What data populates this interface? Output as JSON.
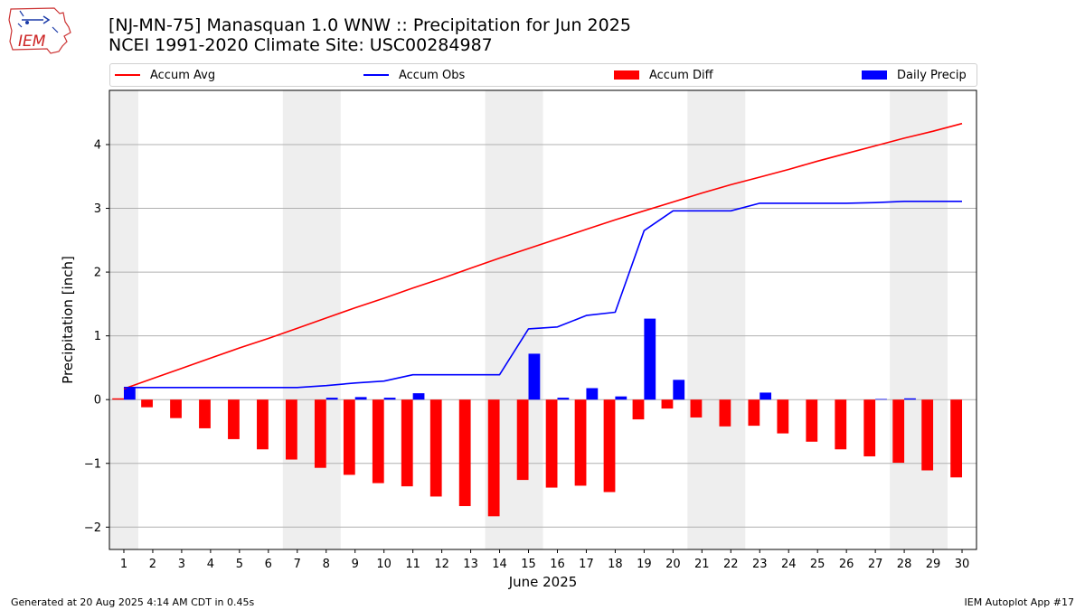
{
  "header": {
    "title_line1": "[NJ-MN-75] Manasquan 1.0 WNW :: Precipitation for Jun 2025",
    "title_line2": "NCEI 1991-2020 Climate Site: USC00284987",
    "logo_text": "IEM"
  },
  "legend": {
    "placement": "top",
    "items": [
      {
        "label": "Accum Avg",
        "kind": "line",
        "color": "#ff0000"
      },
      {
        "label": "Accum Obs",
        "kind": "line",
        "color": "#0000ff"
      },
      {
        "label": "Accum Diff",
        "kind": "bar",
        "color": "#ff0000"
      },
      {
        "label": "Daily Precip",
        "kind": "bar",
        "color": "#0000ff"
      }
    ]
  },
  "footer": {
    "left": "Generated at 20 Aug 2025 4:14 AM CDT in 0.45s",
    "right": "IEM Autoplot App #17"
  },
  "chart_data": {
    "type": "bar",
    "title": "[NJ-MN-75] Manasquan 1.0 WNW :: Precipitation for Jun 2025",
    "subtitle": "NCEI 1991-2020 Climate Site: USC00284987",
    "xlabel": "June 2025",
    "ylabel": "Precipitation [inch]",
    "xlim": [
      0.5,
      30.5
    ],
    "ylim": [
      -2.35,
      4.85
    ],
    "yticks": [
      -2,
      -1,
      0,
      1,
      2,
      3,
      4
    ],
    "ytick_labels": [
      "−2",
      "−1",
      "0",
      "1",
      "2",
      "3",
      "4"
    ],
    "x": [
      1,
      2,
      3,
      4,
      5,
      6,
      7,
      8,
      9,
      10,
      11,
      12,
      13,
      14,
      15,
      16,
      17,
      18,
      19,
      20,
      21,
      22,
      23,
      24,
      25,
      26,
      27,
      28,
      29,
      30
    ],
    "x_tick_labels": [
      "1",
      "2",
      "3",
      "4",
      "5",
      "6",
      "7",
      "8",
      "9",
      "10",
      "11",
      "12",
      "13",
      "14",
      "15",
      "16",
      "17",
      "18",
      "19",
      "20",
      "21",
      "22",
      "23",
      "24",
      "25",
      "26",
      "27",
      "28",
      "29",
      "30"
    ],
    "grid": "horizontal",
    "weekend_shading": [
      [
        0.5,
        1.5
      ],
      [
        6.5,
        8.5
      ],
      [
        13.5,
        15.5
      ],
      [
        20.5,
        22.5
      ],
      [
        27.5,
        29.5
      ]
    ],
    "shading_color": "#eeeeee",
    "series": [
      {
        "name": "Accum Avg",
        "type": "line",
        "color": "#ff0000",
        "values": [
          0.17,
          0.33,
          0.49,
          0.65,
          0.81,
          0.96,
          1.12,
          1.28,
          1.44,
          1.59,
          1.75,
          1.9,
          2.06,
          2.22,
          2.37,
          2.52,
          2.67,
          2.82,
          2.96,
          3.1,
          3.24,
          3.37,
          3.49,
          3.61,
          3.74,
          3.86,
          3.98,
          4.1,
          4.21,
          4.33
        ]
      },
      {
        "name": "Accum Obs",
        "type": "line",
        "color": "#0000ff",
        "values": [
          0.19,
          0.19,
          0.19,
          0.19,
          0.19,
          0.19,
          0.19,
          0.22,
          0.26,
          0.29,
          0.39,
          0.39,
          0.39,
          0.39,
          1.11,
          1.14,
          1.32,
          1.37,
          2.65,
          2.96,
          2.96,
          2.96,
          3.08,
          3.08,
          3.08,
          3.08,
          3.09,
          3.11,
          3.11,
          3.11
        ]
      },
      {
        "name": "Accum Diff",
        "type": "bar",
        "color": "#ff0000",
        "values": [
          0.02,
          -0.12,
          -0.29,
          -0.45,
          -0.62,
          -0.78,
          -0.94,
          -1.07,
          -1.18,
          -1.31,
          -1.36,
          -1.52,
          -1.67,
          -1.83,
          -1.26,
          -1.38,
          -1.35,
          -1.45,
          -0.31,
          -0.14,
          -0.28,
          -0.42,
          -0.41,
          -0.53,
          -0.66,
          -0.78,
          -0.89,
          -0.99,
          -1.11,
          -1.22
        ]
      },
      {
        "name": "Daily Precip",
        "type": "bar",
        "color": "#0000ff",
        "values": [
          0.19,
          0,
          0,
          0,
          0,
          0,
          0,
          0.03,
          0.04,
          0.03,
          0.1,
          0,
          0,
          0,
          0.72,
          0.03,
          0.18,
          0.05,
          1.27,
          0.31,
          0,
          0,
          0.11,
          0,
          0,
          0,
          0.01,
          0.02,
          0,
          0
        ]
      }
    ]
  }
}
